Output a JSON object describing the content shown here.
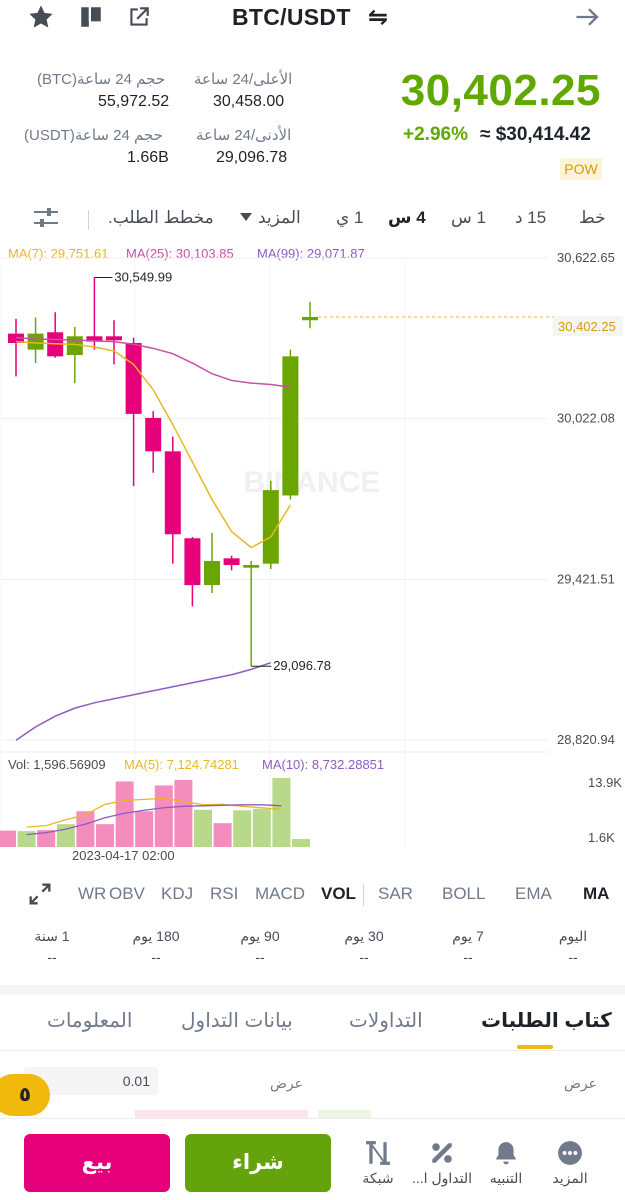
{
  "header": {
    "pair": "BTC/USDT",
    "swap_glyph": "⇋",
    "icons": [
      "star-icon",
      "flag-icon",
      "share-icon",
      "back-arrow-icon"
    ]
  },
  "stats": {
    "last_price": "30,402.25",
    "change_pct": "+2.96%",
    "usd_equiv": "≈ $30,414.42",
    "tag": "POW",
    "high_label": "الأعلى/24 ساعة",
    "high_value": "30,458.00",
    "low_label": "الأدنى/24 ساعة",
    "low_value": "29,096.78",
    "vol_btc_label": "حجم 24 ساعة(BTC)",
    "vol_btc_value": "55,972.52",
    "vol_usdt_label": "حجم 24 ساعة(USDT)",
    "vol_usdt_value": "1.66B"
  },
  "timeframes": {
    "items": [
      "خط",
      "15 د",
      "1 س",
      "4 س",
      "1 ي",
      "المزيد",
      "مخطط الطلب."
    ],
    "active": "4 س"
  },
  "chart_data": {
    "type": "candlestick",
    "ma_legend": {
      "ma7": "MA(7): 29,751.61",
      "ma25": "MA(25): 30,103.85",
      "ma99": "MA(99): 29,071.87"
    },
    "y_axis_labels": [
      "30,622.65",
      "30,022.08",
      "29,421.51",
      "28,820.94"
    ],
    "ylim": [
      28820.94,
      30622.65
    ],
    "current_price_label": "30,402.25",
    "high_annotation": "30,549.99",
    "low_annotation": "29,096.78",
    "watermark": "BINANCE",
    "candles": [
      {
        "o": 30340,
        "h": 30395,
        "l": 30180,
        "c": 30305
      },
      {
        "o": 30280,
        "h": 30400,
        "l": 30230,
        "c": 30340
      },
      {
        "o": 30345,
        "h": 30420,
        "l": 30250,
        "c": 30255
      },
      {
        "o": 30260,
        "h": 30365,
        "l": 30155,
        "c": 30330
      },
      {
        "o": 30330,
        "h": 30549.99,
        "l": 30280,
        "c": 30310
      },
      {
        "o": 30330,
        "h": 30390,
        "l": 30225,
        "c": 30315
      },
      {
        "o": 30305,
        "h": 30325,
        "l": 29770,
        "c": 30040
      },
      {
        "o": 30025,
        "h": 30050,
        "l": 29820,
        "c": 29900
      },
      {
        "o": 29900,
        "h": 29955,
        "l": 29480,
        "c": 29590
      },
      {
        "o": 29575,
        "h": 29580,
        "l": 29320,
        "c": 29400
      },
      {
        "o": 29400,
        "h": 29595,
        "l": 29370,
        "c": 29490
      },
      {
        "o": 29500,
        "h": 29510,
        "l": 29455,
        "c": 29475
      },
      {
        "o": 29465,
        "h": 29490,
        "l": 29096.78,
        "c": 29475
      },
      {
        "o": 29480,
        "h": 29790,
        "l": 29460,
        "c": 29755
      },
      {
        "o": 29735,
        "h": 30280,
        "l": 29720,
        "c": 30255
      },
      {
        "o": 30390,
        "h": 30458,
        "l": 30360,
        "c": 30402.25
      }
    ],
    "ma7_values": [
      30310,
      30305,
      30302,
      30300,
      30290,
      30275,
      30225,
      30130,
      30000,
      29860,
      29720,
      29600,
      29540,
      29580,
      29700
    ],
    "ma25_values": [
      30325,
      30320,
      30318,
      30316,
      30313,
      30310,
      30300,
      30285,
      30265,
      30230,
      30190,
      30165,
      30155,
      30150,
      30140
    ],
    "ma99_values": [
      28820,
      28870,
      28910,
      28940,
      28960,
      28975,
      28990,
      29005,
      29020,
      29035,
      29050,
      29065,
      29085,
      29110
    ],
    "volume": {
      "legend_vol": "Vol: 1,596.56909",
      "legend_ma5": "MA(5): 7,124.74281",
      "legend_ma10": "MA(10): 8,732.28851",
      "axis_top": "13.9K",
      "axis_bottom": "1.6K",
      "ylim": [
        0,
        13900
      ],
      "bars": [
        {
          "v": 3300,
          "up": false
        },
        {
          "v": 3200,
          "up": true
        },
        {
          "v": 3400,
          "up": false
        },
        {
          "v": 4600,
          "up": true
        },
        {
          "v": 7200,
          "up": false
        },
        {
          "v": 4600,
          "up": false
        },
        {
          "v": 13200,
          "up": false
        },
        {
          "v": 7200,
          "up": false
        },
        {
          "v": 12400,
          "up": false
        },
        {
          "v": 13500,
          "up": false
        },
        {
          "v": 7500,
          "up": true
        },
        {
          "v": 4800,
          "up": false
        },
        {
          "v": 7400,
          "up": true
        },
        {
          "v": 7700,
          "up": true
        },
        {
          "v": 13900,
          "up": true
        },
        {
          "v": 1600,
          "up": true
        }
      ],
      "ma5": [
        4000,
        4300,
        5500,
        6500,
        8600,
        9400,
        9600,
        9800,
        9200,
        8500,
        8600,
        8200,
        7900,
        7600
      ],
      "ma10": [
        2500,
        2900,
        3600,
        4600,
        5900,
        6800,
        7400,
        7900,
        8200,
        8300,
        8400,
        8500,
        8500,
        8300
      ]
    },
    "date_label": "2023-04-17 02:00"
  },
  "indicators": {
    "items": [
      "MA",
      "EMA",
      "BOLL",
      "SAR",
      "VOL",
      "MACD",
      "RSI",
      "KDJ",
      "OBV",
      "WR"
    ],
    "active": "VOL"
  },
  "periods": [
    {
      "label": "اليوم",
      "value": "--"
    },
    {
      "label": "7 يوم",
      "value": "--"
    },
    {
      "label": "30 يوم",
      "value": "--"
    },
    {
      "label": "90 يوم",
      "value": "--"
    },
    {
      "label": "180 يوم",
      "value": "--"
    },
    {
      "label": "1 سنة",
      "value": "--"
    }
  ],
  "bottom_tabs": {
    "items": [
      "كتاب الطلبات",
      "التداولات",
      "بيانات التداول",
      "المعلومات"
    ],
    "active": "كتاب الطلبات"
  },
  "orderbook": {
    "bid_label": "عرض",
    "ask_label": "عرض",
    "precision": "0.01",
    "badge": "٥"
  },
  "actions": {
    "sell": "بيع",
    "buy": "شراء"
  },
  "nav": [
    {
      "label": "المزيد",
      "icon": "more-icon"
    },
    {
      "label": "التنبيه",
      "icon": "bell-icon"
    },
    {
      "label": "التداول ا...",
      "icon": "percent-icon"
    },
    {
      "label": "شبكة",
      "icon": "grid-icon"
    }
  ],
  "colors": {
    "up": "#6aa500",
    "down": "#e6007a",
    "ma7": "#e8b823",
    "ma25": "#c94fa8",
    "ma99": "#8e5cc0",
    "accent": "#f0b90b"
  }
}
